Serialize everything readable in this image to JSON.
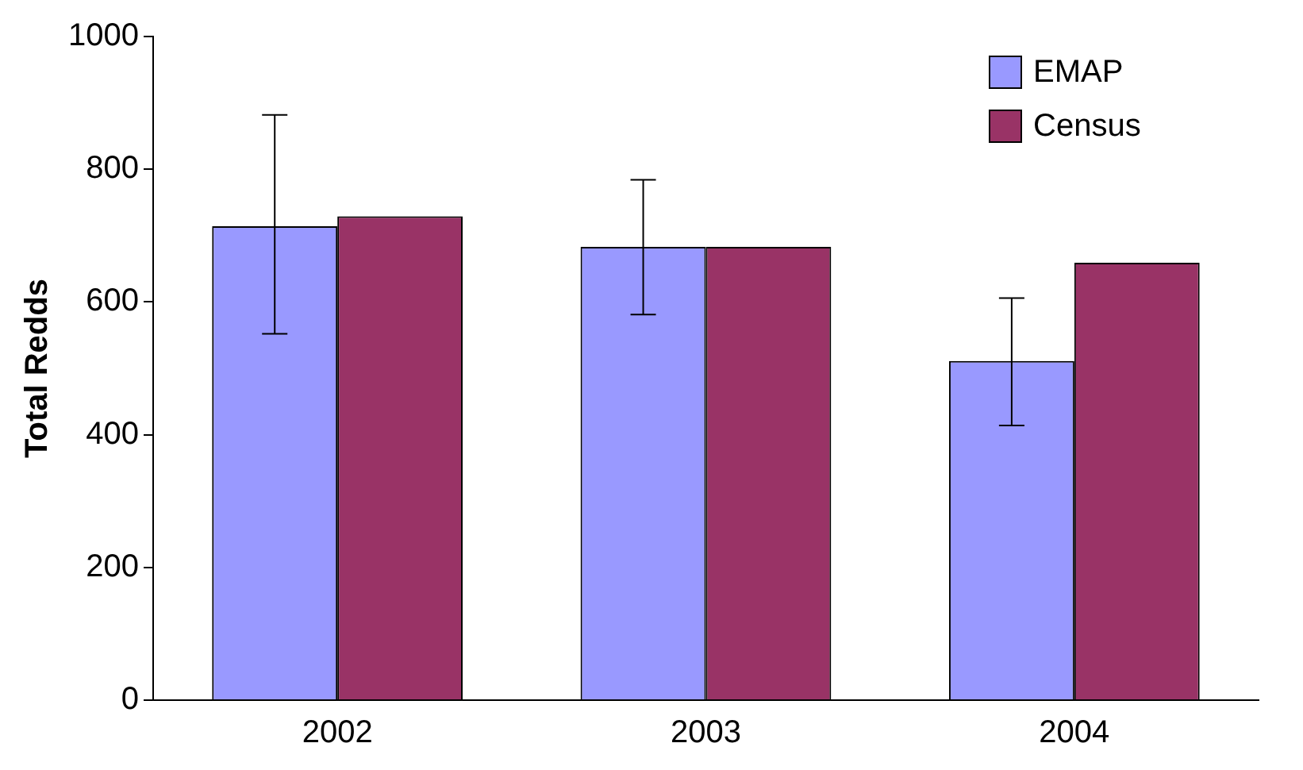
{
  "chart_data": {
    "type": "bar",
    "ylabel": "Total Redds",
    "categories": [
      "2002",
      "2003",
      "2004"
    ],
    "series": [
      {
        "name": "EMAP",
        "color": "#9999ff",
        "values": [
          714,
          683,
          511
        ],
        "errors": [
          [
            552,
            882
          ],
          [
            581,
            784
          ],
          [
            414,
            606
          ]
        ]
      },
      {
        "name": "Census",
        "color": "#993366",
        "values": [
          729,
          683,
          659
        ]
      }
    ],
    "ylim": [
      0,
      1000
    ],
    "yticks": [
      0,
      200,
      400,
      600,
      800,
      1000
    ],
    "grid": false,
    "legend": "top right"
  }
}
